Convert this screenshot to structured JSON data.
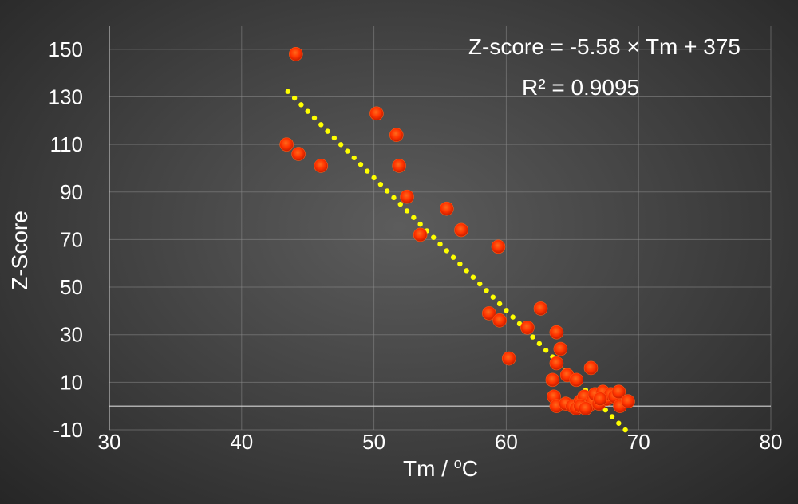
{
  "chart_data": {
    "type": "scatter",
    "title": "",
    "xlabel": "Tm / ",
    "xlabel_super": "o",
    "xlabel_tail": "C",
    "ylabel": "Z-Score",
    "xlim": [
      30,
      80
    ],
    "ylim": [
      -10,
      160
    ],
    "x_ticks": [
      30,
      40,
      50,
      60,
      70,
      80
    ],
    "y_ticks": [
      -10,
      10,
      30,
      50,
      70,
      90,
      110,
      130,
      150
    ],
    "grid": true,
    "legend": "none",
    "point_color": "#ff3300",
    "trend_color": "#ffff00",
    "trendline": {
      "slope": -5.58,
      "intercept": 375,
      "x_from": 43.5,
      "x_to": 69
    },
    "annotations": {
      "equation": "Z-score = -5.58 × Tm + 375",
      "r_squared": "R² = 0.9095"
    },
    "points": [
      {
        "x": 44.1,
        "y": 148
      },
      {
        "x": 43.4,
        "y": 110
      },
      {
        "x": 44.3,
        "y": 106
      },
      {
        "x": 46.0,
        "y": 101
      },
      {
        "x": 50.2,
        "y": 123
      },
      {
        "x": 51.7,
        "y": 114
      },
      {
        "x": 51.9,
        "y": 101
      },
      {
        "x": 52.5,
        "y": 88
      },
      {
        "x": 53.5,
        "y": 72
      },
      {
        "x": 55.5,
        "y": 83
      },
      {
        "x": 56.6,
        "y": 74
      },
      {
        "x": 59.4,
        "y": 67
      },
      {
        "x": 58.7,
        "y": 39
      },
      {
        "x": 59.5,
        "y": 36
      },
      {
        "x": 61.6,
        "y": 33
      },
      {
        "x": 62.6,
        "y": 41
      },
      {
        "x": 60.2,
        "y": 20
      },
      {
        "x": 63.8,
        "y": 31
      },
      {
        "x": 64.1,
        "y": 24
      },
      {
        "x": 63.8,
        "y": 18
      },
      {
        "x": 63.5,
        "y": 11
      },
      {
        "x": 64.6,
        "y": 13
      },
      {
        "x": 65.3,
        "y": 11
      },
      {
        "x": 66.4,
        "y": 16
      },
      {
        "x": 63.6,
        "y": 4
      },
      {
        "x": 63.8,
        "y": 0
      },
      {
        "x": 64.5,
        "y": 1
      },
      {
        "x": 65.0,
        "y": 0
      },
      {
        "x": 65.3,
        "y": -1
      },
      {
        "x": 65.6,
        "y": 2
      },
      {
        "x": 65.9,
        "y": 4
      },
      {
        "x": 66.2,
        "y": 0
      },
      {
        "x": 66.5,
        "y": 2
      },
      {
        "x": 66.7,
        "y": 5
      },
      {
        "x": 67.0,
        "y": 1
      },
      {
        "x": 67.3,
        "y": 6
      },
      {
        "x": 67.6,
        "y": 3
      },
      {
        "x": 67.9,
        "y": 5
      },
      {
        "x": 68.2,
        "y": 4
      },
      {
        "x": 68.5,
        "y": 6
      },
      {
        "x": 68.6,
        "y": 0
      },
      {
        "x": 69.2,
        "y": 2
      },
      {
        "x": 65.6,
        "y": 0
      },
      {
        "x": 66.0,
        "y": -1
      },
      {
        "x": 67.1,
        "y": 3
      }
    ]
  }
}
